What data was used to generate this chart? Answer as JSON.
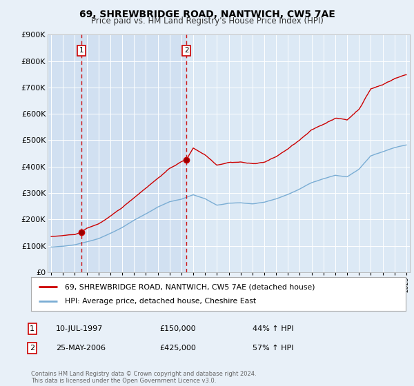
{
  "title": "69, SHREWBRIDGE ROAD, NANTWICH, CW5 7AE",
  "subtitle": "Price paid vs. HM Land Registry's House Price Index (HPI)",
  "background_color": "#e8f0f8",
  "plot_bg_color": "#dce9f5",
  "shade_color": "#c8d8ee",
  "transaction1_year": 1997.54,
  "transaction1_price": 150000,
  "transaction2_year": 2006.42,
  "transaction2_price": 425000,
  "legend_line1": "69, SHREWBRIDGE ROAD, NANTWICH, CW5 7AE (detached house)",
  "legend_line2": "HPI: Average price, detached house, Cheshire East",
  "footer": "Contains HM Land Registry data © Crown copyright and database right 2024.\nThis data is licensed under the Open Government Licence v3.0.",
  "table_rows": [
    {
      "num": "1",
      "date": "10-JUL-1997",
      "price": "£150,000",
      "pct": "44% ↑ HPI"
    },
    {
      "num": "2",
      "date": "25-MAY-2006",
      "price": "£425,000",
      "pct": "57% ↑ HPI"
    }
  ],
  "ylim": [
    0,
    900000
  ],
  "yticks": [
    0,
    100000,
    200000,
    300000,
    400000,
    500000,
    600000,
    700000,
    800000,
    900000
  ],
  "ytick_labels": [
    "£0",
    "£100K",
    "£200K",
    "£300K",
    "£400K",
    "£500K",
    "£600K",
    "£700K",
    "£800K",
    "£900K"
  ],
  "red_line_color": "#cc0000",
  "blue_line_color": "#7aadd4",
  "vline_color": "#cc0000",
  "num_box_color": "#cc0000",
  "hpi_keypoints_x": [
    1995,
    1996,
    1997,
    1998,
    1999,
    2000,
    2001,
    2002,
    2003,
    2004,
    2005,
    2006,
    2007,
    2008,
    2009,
    2010,
    2011,
    2012,
    2013,
    2014,
    2015,
    2016,
    2017,
    2018,
    2019,
    2020,
    2021,
    2022,
    2023,
    2024,
    2025
  ],
  "hpi_keypoints_y": [
    95000,
    98000,
    104000,
    115000,
    128000,
    148000,
    170000,
    198000,
    222000,
    248000,
    268000,
    278000,
    295000,
    280000,
    255000,
    262000,
    264000,
    260000,
    265000,
    278000,
    295000,
    315000,
    340000,
    355000,
    368000,
    362000,
    390000,
    440000,
    455000,
    472000,
    482000
  ],
  "red_keypoints_x": [
    1995.0,
    1996.0,
    1997.0,
    1997.54,
    1998,
    1999,
    2000,
    2001,
    2002,
    2003,
    2004,
    2005,
    2006.0,
    2006.42,
    2007,
    2008,
    2009,
    2010,
    2011,
    2012,
    2013,
    2014,
    2015,
    2016,
    2017,
    2018,
    2019,
    2020,
    2021,
    2022,
    2023,
    2024,
    2025
  ],
  "red_keypoints_y": [
    135000,
    138000,
    142000,
    150000,
    165000,
    182000,
    210000,
    242000,
    280000,
    318000,
    355000,
    392000,
    418000,
    425000,
    470000,
    445000,
    408000,
    420000,
    422000,
    415000,
    422000,
    442000,
    472000,
    505000,
    540000,
    562000,
    588000,
    580000,
    622000,
    700000,
    715000,
    740000,
    755000
  ]
}
